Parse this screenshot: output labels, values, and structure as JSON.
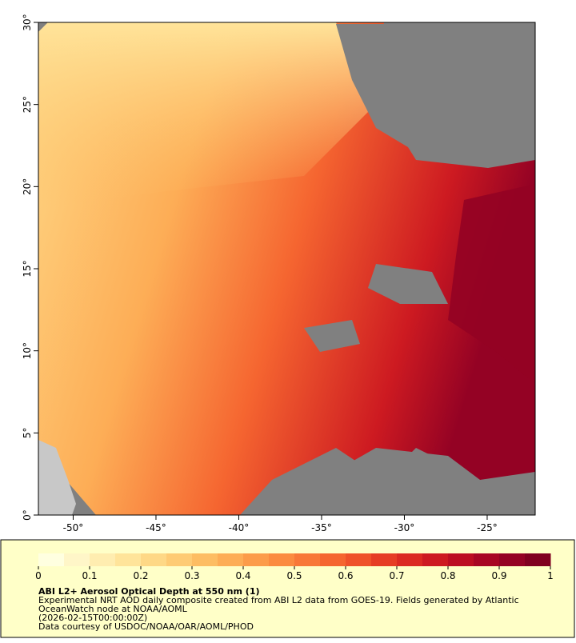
{
  "map": {
    "xlim": [
      -52.1,
      -22.1
    ],
    "ylim": [
      0,
      30
    ],
    "xticks": [
      {
        "value": -50,
        "label": "-50°"
      },
      {
        "value": -45,
        "label": "-45°"
      },
      {
        "value": -40,
        "label": "-40°"
      },
      {
        "value": -35,
        "label": "-35°"
      },
      {
        "value": -30,
        "label": "-30°"
      },
      {
        "value": -25,
        "label": "-25°"
      }
    ],
    "yticks": [
      {
        "value": 0,
        "label": "0°"
      },
      {
        "value": 5,
        "label": "5°"
      },
      {
        "value": 10,
        "label": "10°"
      },
      {
        "value": 15,
        "label": "15°"
      },
      {
        "value": 20,
        "label": "20°"
      },
      {
        "value": 25,
        "label": "25°"
      },
      {
        "value": 30,
        "label": "30°"
      }
    ]
  },
  "colorbar": {
    "range": [
      0,
      1
    ],
    "ticks": [
      0,
      0.1,
      0.2,
      0.3,
      0.4,
      0.5,
      0.6,
      0.7,
      0.8,
      0.9,
      1
    ],
    "colors": [
      "#ffffe0",
      "#fff6c8",
      "#ffedb0",
      "#ffe49a",
      "#fed886",
      "#fecb74",
      "#fdbd63",
      "#fdad56",
      "#fc9c4a",
      "#fb8b40",
      "#f87838",
      "#f56530",
      "#ef512a",
      "#e63d25",
      "#db2a22",
      "#cd1a21",
      "#bc0e22",
      "#a80624",
      "#940224",
      "#800020"
    ],
    "title": "ABI L2+ Aerosol Optical Depth at 550 nm (1)",
    "lines": [
      "Experimental NRT AOD daily composite created from ABI L2 data from GOES-19. Fields generated by Atlantic",
      "OceanWatch node at NOAA/AOML",
      "(2026-02-15T00:00:00Z)",
      "Data courtesy of USDOC/NOAA/OAR/AOML/PHOD"
    ]
  }
}
